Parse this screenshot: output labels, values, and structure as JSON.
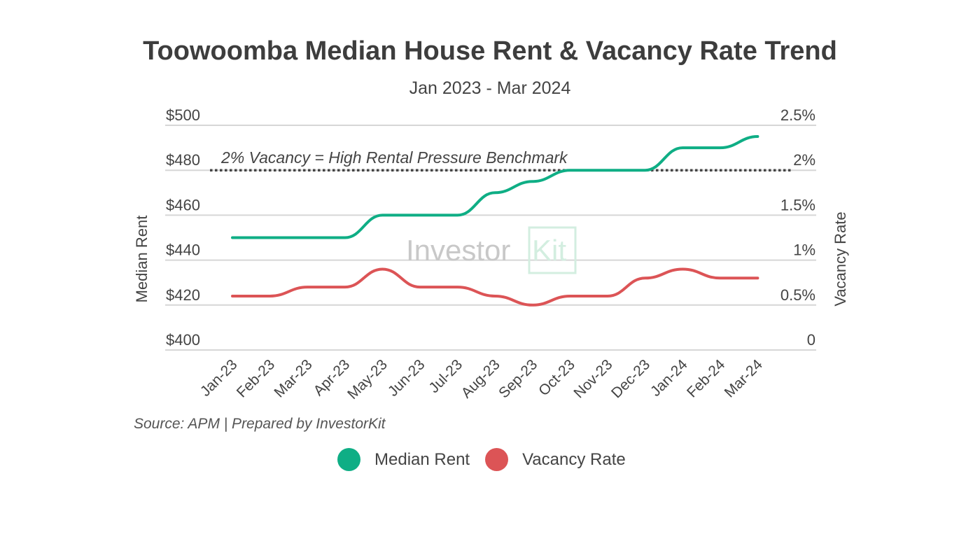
{
  "header": {
    "title": "Toowoomba Median House Rent & Vacancy Rate Trend",
    "subtitle": "Jan 2023 - Mar 2024"
  },
  "annotation": "2% Vacancy = High Rental Pressure Benchmark",
  "watermark": {
    "text1": "Investor",
    "text2": "Kit"
  },
  "source": "Source: APM | Prepared by InvestorKit",
  "legend": [
    {
      "label": "Median Rent",
      "color": "#0fae85"
    },
    {
      "label": "Vacancy Rate",
      "color": "#dc5456"
    }
  ],
  "chart_data": {
    "type": "line",
    "title": "Toowoomba Median House Rent & Vacancy Rate Trend",
    "subtitle": "Jan 2023 - Mar 2024",
    "categories": [
      "Jan-23",
      "Feb-23",
      "Mar-23",
      "Apr-23",
      "May-23",
      "Jun-23",
      "Jul-23",
      "Aug-23",
      "Sep-23",
      "Oct-23",
      "Nov-23",
      "Dec-23",
      "Jan-24",
      "Feb-24",
      "Mar-24"
    ],
    "series": [
      {
        "name": "Median Rent",
        "axis": "left",
        "color": "#0fae85",
        "values": [
          450,
          450,
          450,
          450,
          460,
          460,
          460,
          470,
          475,
          480,
          480,
          480,
          490,
          490,
          495
        ]
      },
      {
        "name": "Vacancy Rate",
        "axis": "right",
        "color": "#dc5456",
        "values": [
          0.6,
          0.6,
          0.7,
          0.7,
          0.9,
          0.7,
          0.7,
          0.6,
          0.5,
          0.6,
          0.6,
          0.8,
          0.9,
          0.8,
          0.8
        ]
      }
    ],
    "ylabel": "Median Rent",
    "y2label": "Vacancy Rate",
    "ylim": [
      400,
      500
    ],
    "y2lim": [
      0,
      2.5
    ],
    "yticks": [
      "$400",
      "$420",
      "$440",
      "$460",
      "$480",
      "$500"
    ],
    "y2ticks": [
      "0",
      "0.5%",
      "1%",
      "1.5%",
      "2%",
      "2.5%"
    ],
    "benchmark": {
      "value": 2,
      "axis": "right",
      "label": "2% Vacancy = High Rental Pressure Benchmark",
      "style": "dotted"
    },
    "grid": true,
    "legend_position": "bottom"
  }
}
